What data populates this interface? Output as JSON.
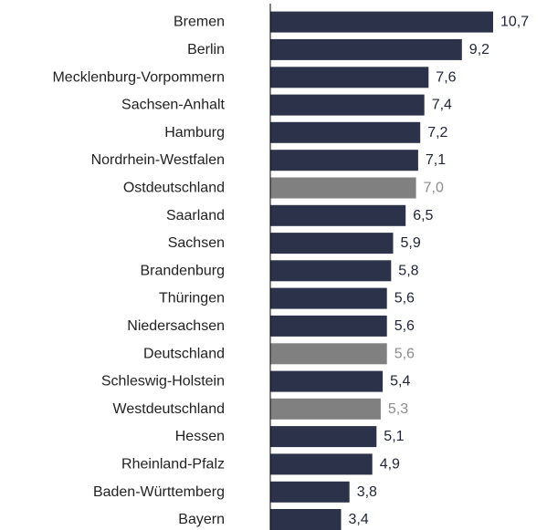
{
  "chart_data": {
    "type": "bar",
    "orientation": "horizontal",
    "title": "",
    "xlabel": "",
    "ylabel": "",
    "xlim": [
      0,
      10.7
    ],
    "grid": false,
    "legend": "none",
    "colors": {
      "state": "#2b3249",
      "region": "#808080",
      "state_label": "#1f2436",
      "region_label": "#8c8c8c",
      "category_label": "#222222",
      "axis": "#000000"
    },
    "categories": [
      "Bremen",
      "Berlin",
      "Mecklenburg-Vorpommern",
      "Sachsen-Anhalt",
      "Hamburg",
      "Nordrhein-Westfalen",
      "Ostdeutschland",
      "Saarland",
      "Sachsen",
      "Brandenburg",
      "Thüringen",
      "Niedersachsen",
      "Deutschland",
      "Schleswig-Holstein",
      "Westdeutschland",
      "Hessen",
      "Rheinland-Pfalz",
      "Baden-Württemberg",
      "Bayern"
    ],
    "values": [
      10.7,
      9.2,
      7.6,
      7.4,
      7.2,
      7.1,
      7.0,
      6.5,
      5.9,
      5.8,
      5.6,
      5.6,
      5.6,
      5.4,
      5.3,
      5.1,
      4.9,
      3.8,
      3.4
    ],
    "value_labels": [
      "10,7",
      "9,2",
      "7,6",
      "7,4",
      "7,2",
      "7,1",
      "7,0",
      "6,5",
      "5,9",
      "5,8",
      "5,6",
      "5,6",
      "5,6",
      "5,4",
      "5,3",
      "5,1",
      "4,9",
      "3,8",
      "3,4"
    ],
    "highlighted": [
      "Ostdeutschland",
      "Deutschland",
      "Westdeutschland"
    ]
  }
}
